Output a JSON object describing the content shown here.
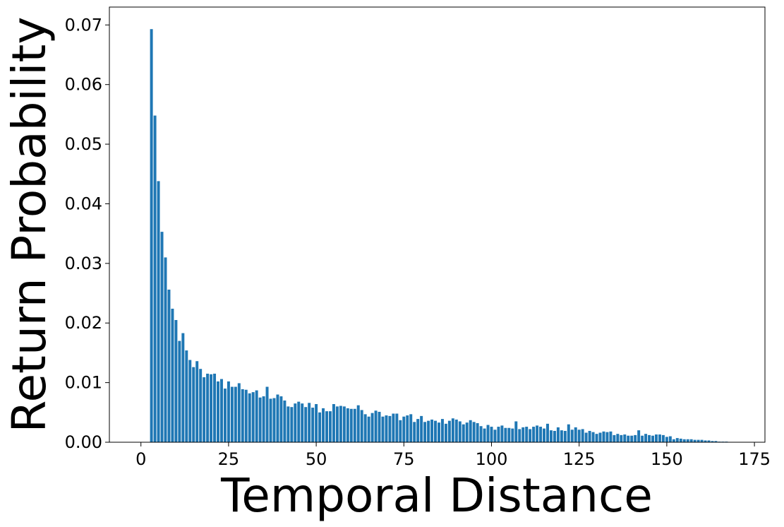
{
  "chart_data": {
    "type": "bar",
    "xlabel": "Temporal Distance",
    "ylabel": "Return Probability",
    "color": "#1f77b4",
    "bar_width": 0.8,
    "xlim": [
      -9,
      178
    ],
    "ylim": [
      0,
      0.073
    ],
    "xticks": [
      0,
      25,
      50,
      75,
      100,
      125,
      150,
      175
    ],
    "yticks": [
      {
        "value": 0,
        "label": "0.00"
      },
      0.01,
      0.02,
      0.03,
      0.04,
      0.05,
      0.06,
      0.07
    ],
    "x": [
      3,
      4,
      5,
      6,
      7,
      8,
      9,
      10,
      11,
      12,
      13,
      14,
      15,
      16,
      17,
      18,
      19,
      20,
      21,
      22,
      23,
      24,
      25,
      26,
      27,
      28,
      29,
      30,
      31,
      32,
      33,
      34,
      35,
      36,
      37,
      38,
      39,
      40,
      41,
      42,
      43,
      44,
      45,
      46,
      47,
      48,
      49,
      50,
      51,
      52,
      53,
      54,
      55,
      56,
      57,
      58,
      59,
      60,
      61,
      62,
      63,
      64,
      65,
      66,
      67,
      68,
      69,
      70,
      71,
      72,
      73,
      74,
      75,
      76,
      77,
      78,
      79,
      80,
      81,
      82,
      83,
      84,
      85,
      86,
      87,
      88,
      89,
      90,
      91,
      92,
      93,
      94,
      95,
      96,
      97,
      98,
      99,
      100,
      101,
      102,
      103,
      104,
      105,
      106,
      107,
      108,
      109,
      110,
      111,
      112,
      113,
      114,
      115,
      116,
      117,
      118,
      119,
      120,
      121,
      122,
      123,
      124,
      125,
      126,
      127,
      128,
      129,
      130,
      131,
      132,
      133,
      134,
      135,
      136,
      137,
      138,
      139,
      140,
      141,
      142,
      143,
      144,
      145,
      146,
      147,
      148,
      149,
      150,
      151,
      152,
      153,
      154,
      155,
      156,
      157,
      158,
      159,
      160,
      161,
      162,
      163,
      164,
      165,
      166,
      167
    ],
    "values": [
      0.0693,
      0.0548,
      0.0438,
      0.0353,
      0.031,
      0.0256,
      0.0224,
      0.0205,
      0.017,
      0.0183,
      0.0154,
      0.0138,
      0.0126,
      0.0136,
      0.0123,
      0.0109,
      0.0115,
      0.0114,
      0.0115,
      0.0102,
      0.0106,
      0.009,
      0.0102,
      0.0093,
      0.0093,
      0.0099,
      0.0089,
      0.0088,
      0.0082,
      0.0084,
      0.0087,
      0.0075,
      0.0077,
      0.0093,
      0.0073,
      0.0074,
      0.008,
      0.0077,
      0.007,
      0.006,
      0.0059,
      0.0065,
      0.0068,
      0.0065,
      0.0059,
      0.0066,
      0.0058,
      0.0064,
      0.005,
      0.0057,
      0.0052,
      0.0052,
      0.0064,
      0.006,
      0.0061,
      0.006,
      0.0057,
      0.0056,
      0.0056,
      0.0062,
      0.0054,
      0.0047,
      0.0043,
      0.0049,
      0.0053,
      0.0051,
      0.0043,
      0.0045,
      0.0044,
      0.0048,
      0.0048,
      0.0037,
      0.0043,
      0.0045,
      0.0047,
      0.0034,
      0.0039,
      0.0044,
      0.0034,
      0.0036,
      0.0038,
      0.0036,
      0.0033,
      0.0039,
      0.0031,
      0.0036,
      0.004,
      0.0038,
      0.0035,
      0.003,
      0.0033,
      0.0037,
      0.0034,
      0.0032,
      0.0027,
      0.0023,
      0.0029,
      0.0026,
      0.0021,
      0.0026,
      0.0028,
      0.0024,
      0.0024,
      0.0023,
      0.0035,
      0.0022,
      0.0025,
      0.0026,
      0.0022,
      0.0026,
      0.0028,
      0.0026,
      0.0023,
      0.0031,
      0.002,
      0.0019,
      0.0025,
      0.002,
      0.0019,
      0.003,
      0.0021,
      0.0025,
      0.0021,
      0.0022,
      0.0016,
      0.0019,
      0.0017,
      0.0014,
      0.0016,
      0.0018,
      0.0017,
      0.0018,
      0.0012,
      0.0014,
      0.0012,
      0.0013,
      0.0011,
      0.0011,
      0.0012,
      0.002,
      0.0011,
      0.0014,
      0.0012,
      0.0011,
      0.0013,
      0.0013,
      0.0012,
      0.0009,
      0.001,
      0.0005,
      0.0007,
      0.0006,
      0.0005,
      0.0005,
      0.0005,
      0.0004,
      0.0004,
      0.0004,
      0.0003,
      0.0003,
      0.0002,
      0.0002,
      0.0001,
      0.0001,
      0.0001
    ]
  }
}
